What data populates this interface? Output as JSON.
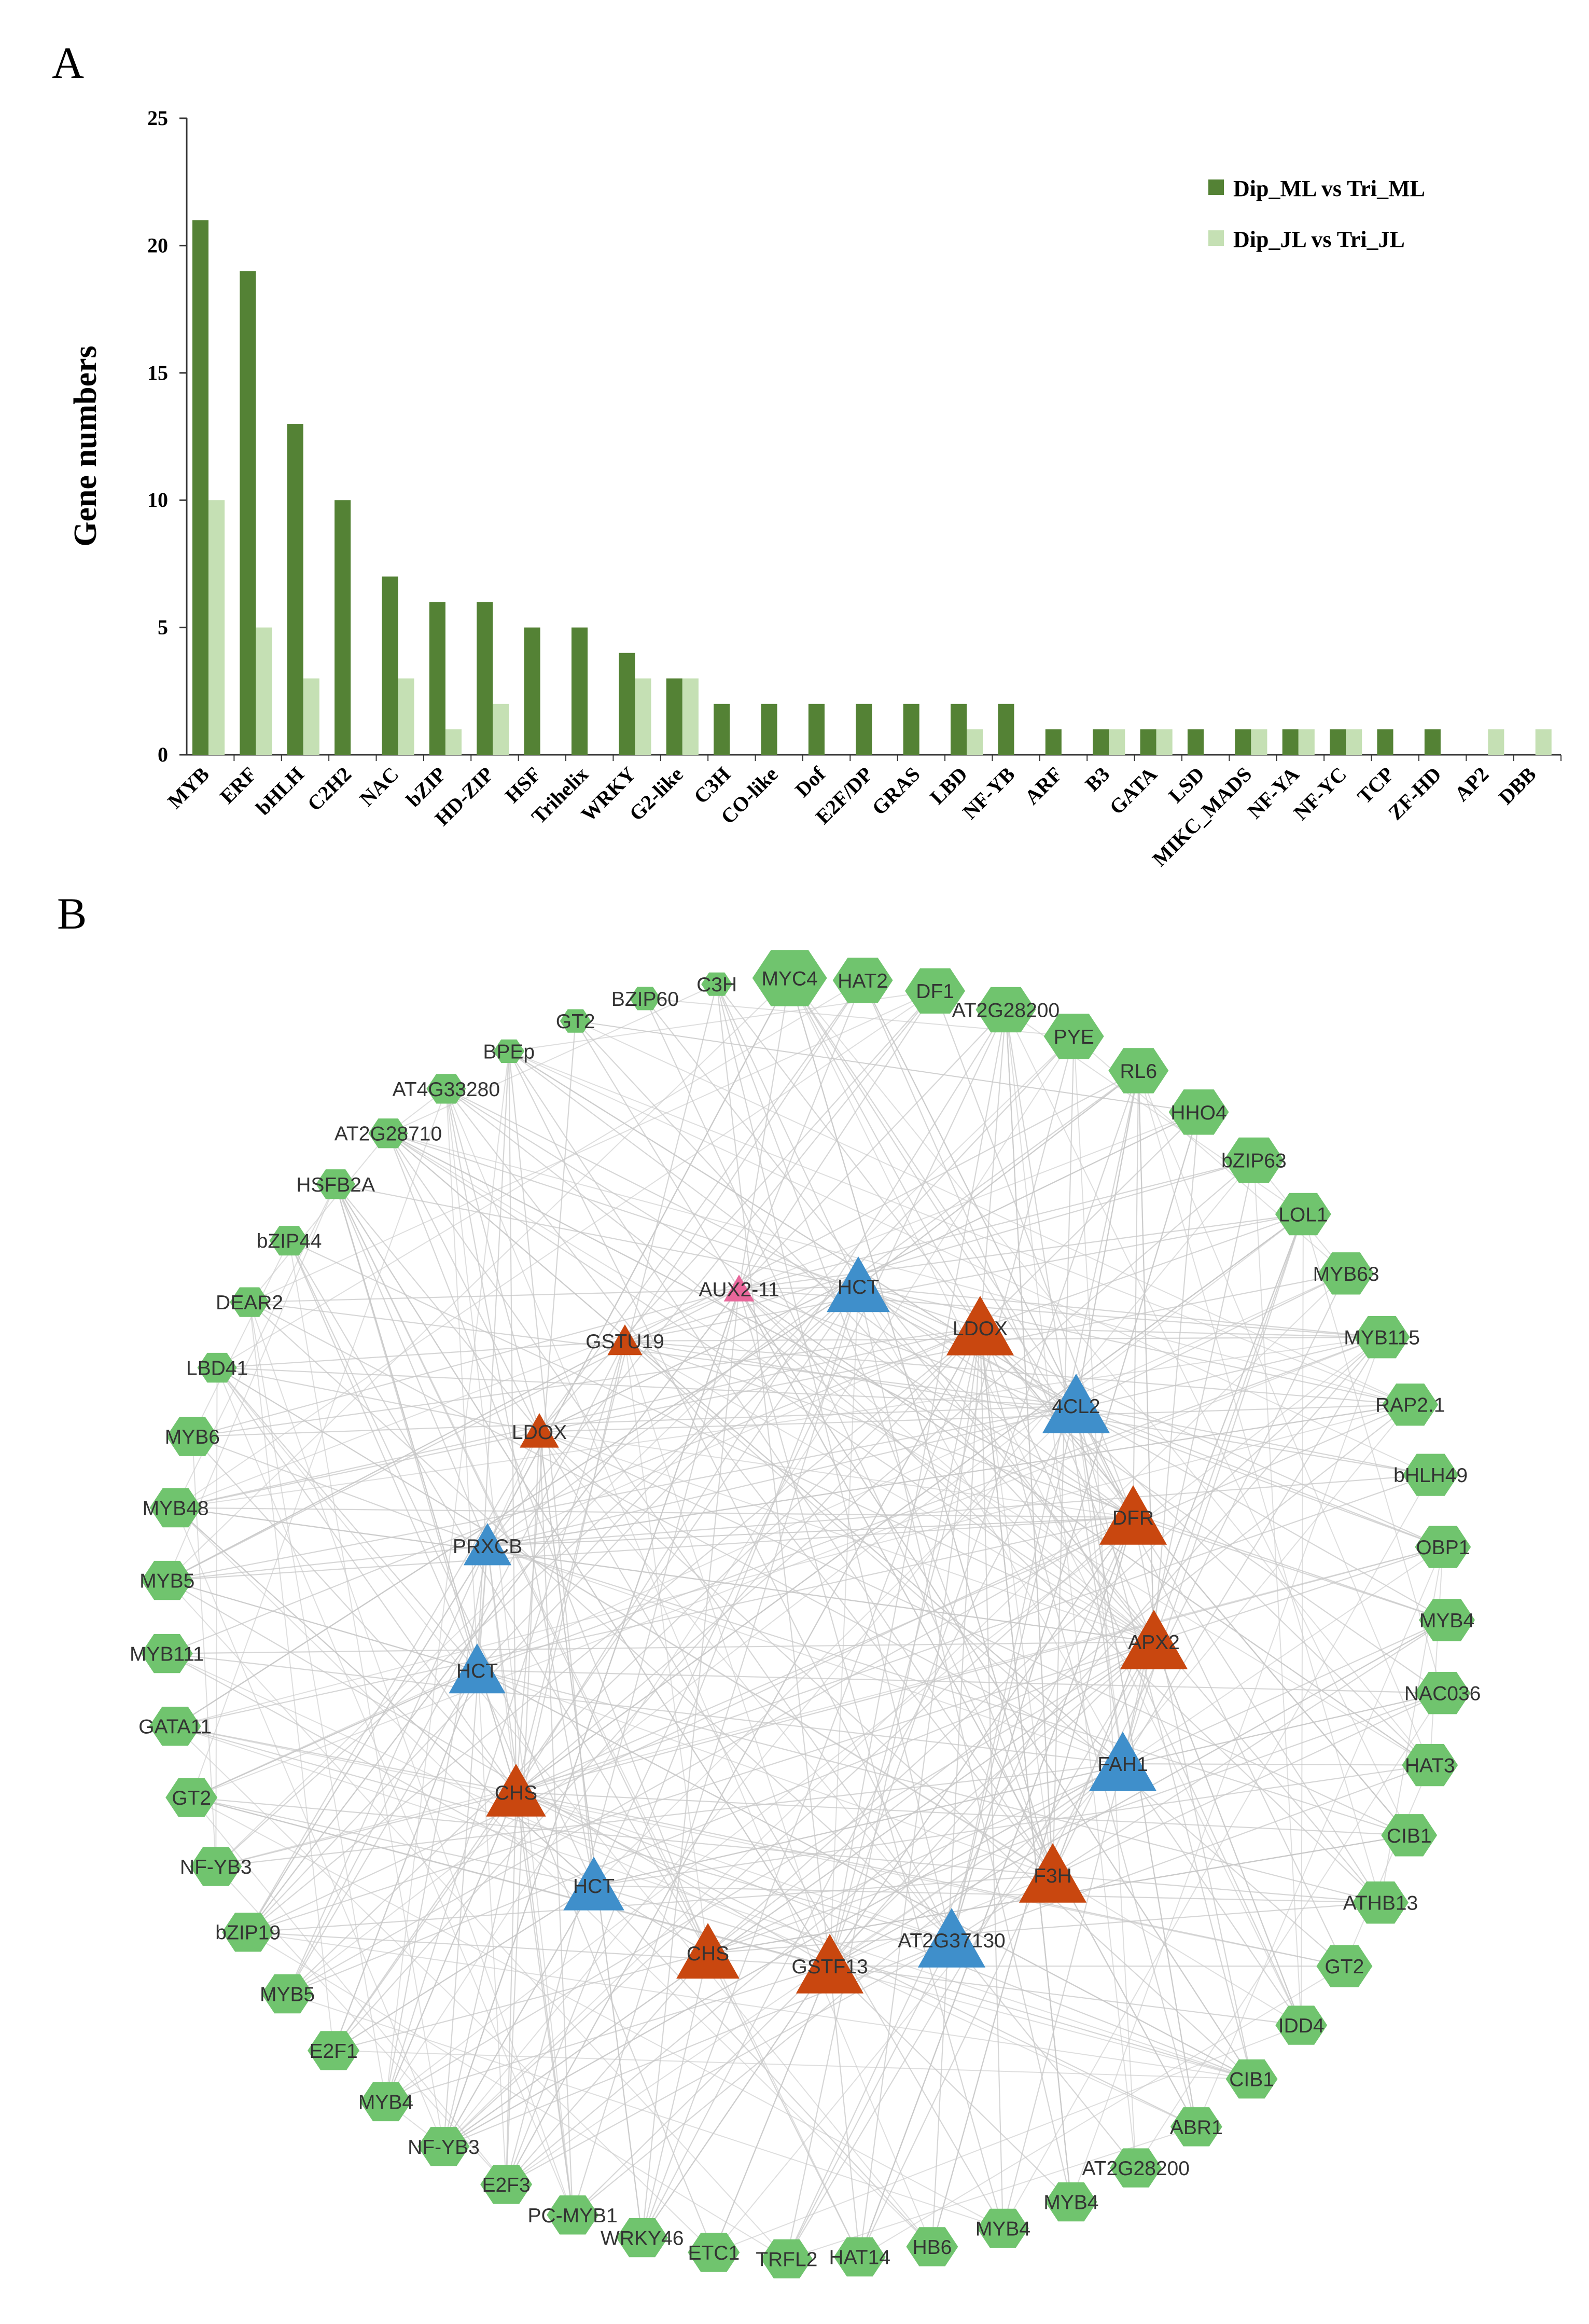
{
  "panels": {
    "a_label": "A",
    "b_label": "B"
  },
  "colors": {
    "ml": "#548235",
    "jl": "#c5e0b4",
    "tf_node": "#70c46e",
    "blue_node": "#3f8fcb",
    "orange_node": "#c9470f",
    "pink_node": "#e8679b",
    "edge": "#c8c8c8"
  },
  "chart_data": {
    "type": "bar",
    "title": "",
    "xlabel": "",
    "ylabel": "Gene numbers",
    "ylim": [
      0,
      25
    ],
    "yticks": [
      0,
      5,
      10,
      15,
      20,
      25
    ],
    "categories": [
      "MYB",
      "ERF",
      "bHLH",
      "C2H2",
      "NAC",
      "bZIP",
      "HD-ZIP",
      "HSF",
      "Trihelix",
      "WRKY",
      "G2-like",
      "C3H",
      "CO-like",
      "Dof",
      "E2F/DP",
      "GRAS",
      "LBD",
      "NF-YB",
      "ARF",
      "B3",
      "GATA",
      "LSD",
      "MIKC_MADS",
      "NF-YA",
      "NF-YC",
      "TCP",
      "ZF-HD",
      "AP2",
      "DBB"
    ],
    "series": [
      {
        "name": "Dip_ML vs Tri_ML",
        "values": [
          21,
          19,
          13,
          10,
          7,
          6,
          6,
          5,
          5,
          4,
          3,
          2,
          2,
          2,
          2,
          2,
          2,
          2,
          1,
          1,
          1,
          1,
          1,
          1,
          1,
          1,
          1,
          0,
          0
        ]
      },
      {
        "name": "Dip_JL vs Tri_JL",
        "values": [
          10,
          5,
          3,
          0,
          3,
          1,
          2,
          0,
          0,
          3,
          3,
          0,
          0,
          0,
          0,
          0,
          1,
          0,
          0,
          1,
          1,
          0,
          1,
          1,
          1,
          0,
          0,
          1,
          1
        ]
      }
    ],
    "legend_position": "top-right"
  },
  "network": {
    "ring_nodes": [
      "MYC4",
      "HAT2",
      "DF1",
      "AT2G28200",
      "PYE",
      "RL6",
      "HHO4",
      "bZIP63",
      "LOL1",
      "MYB63",
      "MYB115",
      "RAP2.1",
      "bHLH49",
      "OBP1",
      "MYB4",
      "NAC036",
      "HAT3",
      "CIB1",
      "ATHB13",
      "GT2",
      "IDD4",
      "CIB1",
      "ABR1",
      "AT2G28200",
      "MYB4",
      "MYB4",
      "HB6",
      "HAT14",
      "TRFL2",
      "ETC1",
      "WRKY46",
      "PC-MYB1",
      "E2F3",
      "NF-YB3",
      "MYB4",
      "E2F1",
      "MYB5",
      "bZIP19",
      "NF-YB3",
      "GT2",
      "GATA11",
      "MYB111",
      "MYB5",
      "MYB48",
      "MYB6",
      "LBD41",
      "DEAR2",
      "bZIP44",
      "HSFB2A",
      "AT2G28710",
      "AT4G33280",
      "BPEp",
      "GT2",
      "BZIP60",
      "C3H"
    ],
    "inner_nodes": [
      {
        "label": "AUX2-11",
        "kind": "pink"
      },
      {
        "label": "HCT",
        "kind": "blue"
      },
      {
        "label": "LDOX",
        "kind": "orange"
      },
      {
        "label": "GSTU19",
        "kind": "orange"
      },
      {
        "label": "4CL2",
        "kind": "blue"
      },
      {
        "label": "LDOX",
        "kind": "orange"
      },
      {
        "label": "DFR",
        "kind": "orange"
      },
      {
        "label": "PRXCB",
        "kind": "blue"
      },
      {
        "label": "APX2",
        "kind": "orange"
      },
      {
        "label": "HCT",
        "kind": "blue"
      },
      {
        "label": "FAH1",
        "kind": "blue"
      },
      {
        "label": "CHS",
        "kind": "orange"
      },
      {
        "label": "F3H",
        "kind": "orange"
      },
      {
        "label": "HCT",
        "kind": "blue"
      },
      {
        "label": "AT2G37130",
        "kind": "blue"
      },
      {
        "label": "CHS",
        "kind": "orange"
      },
      {
        "label": "GSTF13",
        "kind": "orange"
      }
    ]
  }
}
